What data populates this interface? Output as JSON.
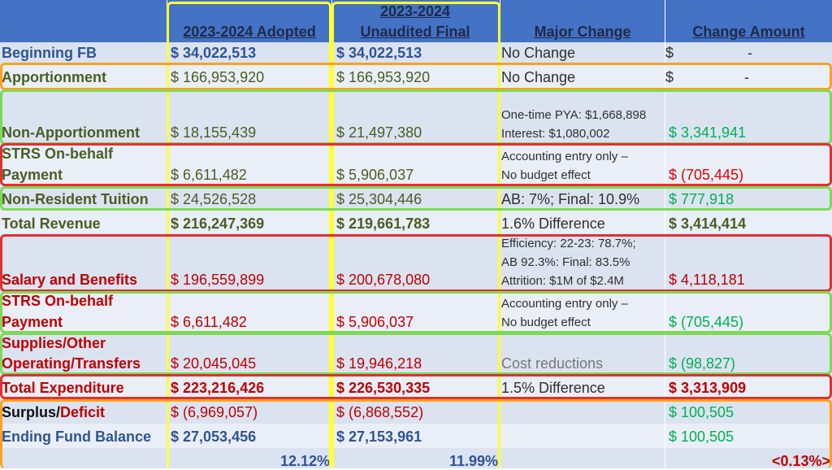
{
  "headers": {
    "adopted": "2023-2024 Adopted",
    "unaudited_line1": "2023-2024",
    "unaudited_line2": "Unaudited Final",
    "major_change": "Major Change",
    "change_amount": "Change Amount"
  },
  "rows": {
    "beginning_fb": {
      "label": "Beginning FB",
      "adopted": "$  34,022,513",
      "unaudited": "$  34,022,513",
      "change": "No Change",
      "amount_sym": "$",
      "amount": "-"
    },
    "apportionment": {
      "label": "Apportionment",
      "adopted": "$ 166,953,920",
      "unaudited": "$  166,953,920",
      "change": "No Change",
      "amount_sym": "$",
      "amount": "-"
    },
    "non_apportionment": {
      "label": "Non-Apportionment",
      "adopted": "$  18,155,439",
      "unaudited": "$    21,497,380",
      "change1": "One-time PYA: $1,668,898",
      "change2": "Interest: $1,080,002",
      "amount": "$   3,341,941"
    },
    "strs_revenue": {
      "label1": "STRS On-behalf",
      "label2": "Payment",
      "adopted": "$     6,611,482",
      "unaudited": "$       5,906,037",
      "change1": "Accounting entry only –",
      "change2": "No budget effect",
      "amount": "$   (705,445)"
    },
    "non_resident": {
      "label": "Non-Resident Tuition",
      "adopted": "$  24,526,528",
      "unaudited": "$    25,304,446",
      "change": "AB: 7%; Final: 10.9%",
      "amount": "$      777,918"
    },
    "total_revenue": {
      "label": "Total Revenue",
      "adopted": "$ 216,247,369",
      "unaudited": "$  219,661,783",
      "change": "1.6% Difference",
      "amount": "$   3,414,414"
    },
    "salary": {
      "label": "Salary and Benefits",
      "adopted": "$ 196,559,899",
      "unaudited": "$  200,678,080",
      "change1": "Efficiency: 22-23: 78.7%;",
      "change2": "AB 92.3%: Final: 83.5%",
      "change3": "Attrition: $1M of $2.4M",
      "amount": "$   4,118,181"
    },
    "strs_expense": {
      "label1": "STRS On-behalf",
      "label2": "Payment",
      "adopted": "$     6,611,482",
      "unaudited": "$       5,906,037",
      "change1": "Accounting entry only –",
      "change2": "No budget effect",
      "amount": "$   (705,445)"
    },
    "supplies": {
      "label1": "Supplies/Other",
      "label2": "Operating/Transfers",
      "adopted": "$   20,045,045",
      "unaudited": "$     19,946,218",
      "change": "Cost reductions",
      "amount": "$     (98,827)"
    },
    "total_expenditure": {
      "label": "Total Expenditure",
      "adopted": "$ 223,216,426",
      "unaudited": "$  226,530,335",
      "change": "1.5% Difference",
      "amount": "$   3,313,909"
    },
    "surplus": {
      "label_a": "Surplus/",
      "label_b": "Deficit",
      "adopted": "$    (6,969,057)",
      "unaudited": "$      (6,868,552)",
      "amount": "$    100,505"
    },
    "ending_fb": {
      "label": "Ending Fund Balance",
      "adopted": "$  27,053,456",
      "unaudited": "$    27,153,961",
      "amount": "$    100,505"
    },
    "footer": {
      "adopted_pct": "12.12%",
      "unaudited_pct": "11.99%",
      "amount_pct": "<0.13%>"
    }
  },
  "colors": {
    "header_blue": "#4472c4",
    "row_light": "#dbe3f1",
    "row_lighter": "#eaeff7",
    "label_green": "#4a5d23",
    "label_blue": "#2f5496",
    "label_red": "#c00000",
    "amount_green": "#00b050",
    "amount_red": "#e00000",
    "box_yellow": "#ffff33",
    "box_orange": "#ffa020",
    "box_green": "#7ed957",
    "box_red": "#e03030"
  }
}
